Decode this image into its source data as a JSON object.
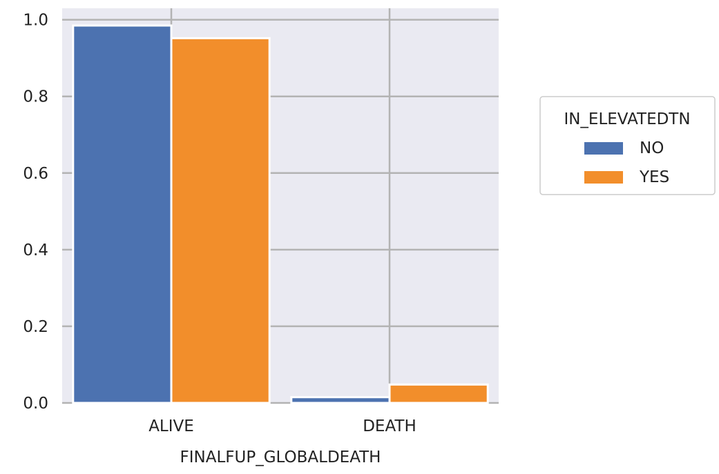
{
  "chart_data": {
    "type": "bar",
    "title": "",
    "xlabel": "FINALFUP_GLOBALDEATH",
    "ylabel": "",
    "categories": [
      "ALIVE",
      "DEATH"
    ],
    "series": [
      {
        "name": "NO",
        "color": "#4C72B0",
        "values": [
          0.985,
          0.015
        ]
      },
      {
        "name": "YES",
        "color": "#F28E2B",
        "values": [
          0.952,
          0.048
        ]
      }
    ],
    "ylim": [
      0,
      1.03
    ],
    "yticks": [
      "0.0",
      "0.2",
      "0.4",
      "0.6",
      "0.8",
      "1.0"
    ],
    "grid": true,
    "legend": {
      "title": "IN_ELEVATEDTN",
      "placement": "outside-right"
    }
  }
}
